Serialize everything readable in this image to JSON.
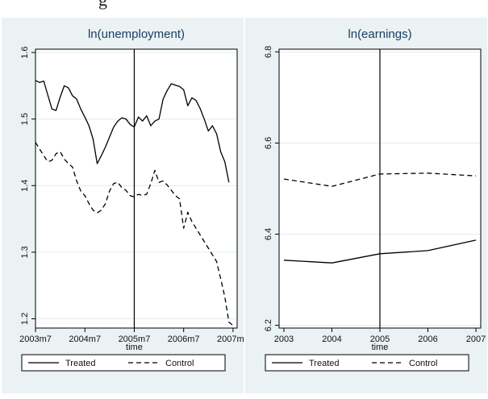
{
  "chart_data": [
    {
      "type": "line",
      "title": "ln(unemployment)",
      "xlabel": "time",
      "ylabel": "",
      "x_tick_labels": [
        "2003m7",
        "2004m7",
        "2005m7",
        "2006m7",
        "2007m7"
      ],
      "x_ticks": [
        0,
        12,
        24,
        36,
        48
      ],
      "xlim": [
        0,
        49
      ],
      "y_tick_labels": [
        "1.2",
        "1.3",
        "1.4",
        "1.5",
        "1.6"
      ],
      "y_ticks": [
        1.2,
        1.3,
        1.4,
        1.5,
        1.6
      ],
      "ylim": [
        1.186,
        1.605
      ],
      "vline": 24,
      "grid": "horizontal",
      "legend_position": "bottom",
      "series": [
        {
          "name": "Treated",
          "style": "solid",
          "x": [
            0,
            1,
            2,
            3,
            4,
            5,
            6,
            7,
            8,
            9,
            10,
            11,
            12,
            13,
            14,
            15,
            16,
            17,
            18,
            19,
            20,
            21,
            22,
            23,
            24,
            25,
            26,
            27,
            28,
            29,
            30,
            31,
            32,
            33,
            34,
            35,
            36,
            37,
            38,
            39,
            40,
            41,
            42,
            43,
            44,
            45,
            46,
            47
          ],
          "values": [
            1.558,
            1.555,
            1.557,
            1.536,
            1.515,
            1.513,
            1.533,
            1.55,
            1.547,
            1.535,
            1.53,
            1.515,
            1.503,
            1.49,
            1.47,
            1.433,
            1.445,
            1.458,
            1.473,
            1.488,
            1.497,
            1.502,
            1.5,
            1.492,
            1.488,
            1.503,
            1.497,
            1.505,
            1.49,
            1.497,
            1.5,
            1.53,
            1.543,
            1.553,
            1.551,
            1.549,
            1.544,
            1.52,
            1.532,
            1.528,
            1.516,
            1.5,
            1.482,
            1.49,
            1.478,
            1.451,
            1.436,
            1.405
          ]
        },
        {
          "name": "Control",
          "style": "dashed",
          "x": [
            0,
            1,
            2,
            3,
            4,
            5,
            6,
            7,
            8,
            9,
            10,
            11,
            12,
            13,
            14,
            15,
            16,
            17,
            18,
            19,
            20,
            21,
            22,
            23,
            24,
            25,
            26,
            27,
            28,
            29,
            30,
            31,
            32,
            33,
            34,
            35,
            36,
            37,
            38,
            39,
            40,
            41,
            42,
            43,
            44,
            45,
            46,
            47,
            48
          ],
          "values": [
            1.465,
            1.455,
            1.445,
            1.436,
            1.438,
            1.448,
            1.451,
            1.44,
            1.433,
            1.428,
            1.407,
            1.392,
            1.385,
            1.373,
            1.363,
            1.359,
            1.363,
            1.373,
            1.392,
            1.403,
            1.405,
            1.397,
            1.393,
            1.385,
            1.383,
            1.387,
            1.385,
            1.387,
            1.403,
            1.423,
            1.405,
            1.407,
            1.401,
            1.393,
            1.385,
            1.38,
            1.336,
            1.36,
            1.346,
            1.336,
            1.326,
            1.316,
            1.306,
            1.296,
            1.286,
            1.26,
            1.233,
            1.195,
            1.19
          ]
        }
      ]
    },
    {
      "type": "line",
      "title": "ln(earnings)",
      "xlabel": "time",
      "ylabel": "",
      "x_tick_labels": [
        "2003",
        "2004",
        "2005",
        "2006",
        "2007"
      ],
      "x_ticks": [
        2003,
        2004,
        2005,
        2006,
        2007
      ],
      "xlim": [
        2002.9,
        2007.1
      ],
      "y_tick_labels": [
        "6.2",
        "6.4",
        "6.6",
        "6.8"
      ],
      "y_ticks": [
        6.2,
        6.4,
        6.6,
        6.8
      ],
      "ylim": [
        6.194,
        6.806
      ],
      "vline": 2005,
      "grid": "horizontal",
      "legend_position": "bottom",
      "series": [
        {
          "name": "Treated",
          "style": "solid",
          "x": [
            2003,
            2004,
            2005,
            2006,
            2007
          ],
          "values": [
            6.343,
            6.337,
            6.357,
            6.364,
            6.387
          ]
        },
        {
          "name": "Control",
          "style": "dashed",
          "x": [
            2003,
            2004,
            2005,
            2006,
            2007
          ],
          "values": [
            6.521,
            6.505,
            6.532,
            6.534,
            6.528
          ]
        }
      ]
    }
  ]
}
